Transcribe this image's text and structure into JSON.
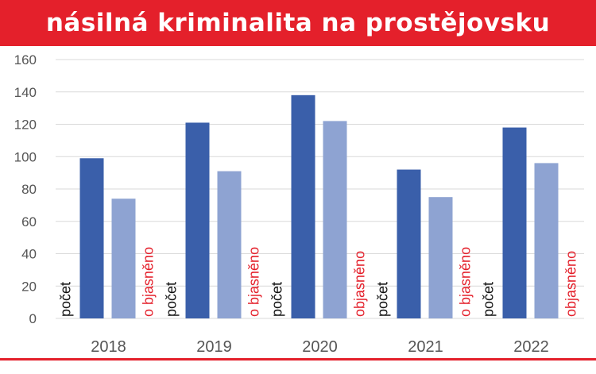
{
  "banner": {
    "title": "násilná kriminalita na prostějovsku"
  },
  "colors": {
    "banner": "#e4202b",
    "count_bar": "#3a5faa",
    "solved_bar": "#8ea3d2",
    "label_count": "#111111",
    "label_solved": "#e4202b",
    "axis_text": "#555555",
    "grid": "#d9d9d9"
  },
  "chart_data": {
    "type": "bar",
    "categories": [
      "2018",
      "2019",
      "2020",
      "2021",
      "2022"
    ],
    "series": [
      {
        "name": "počet",
        "values": [
          99,
          121,
          138,
          92,
          118
        ]
      },
      {
        "name": "objasněno",
        "values": [
          74,
          91,
          122,
          75,
          96
        ]
      }
    ],
    "ylim": [
      0,
      160
    ],
    "yticks": [
      "0",
      "20",
      "40",
      "60",
      "80",
      "100",
      "120",
      "140",
      "160"
    ],
    "grid": true,
    "legend": "none",
    "in_chart_labels": [
      [
        "počet",
        "o bjasněno"
      ],
      [
        "počet",
        "o bjasněno"
      ],
      [
        "počet",
        "objasněno"
      ],
      [
        "počet",
        "o bjasněno"
      ],
      [
        "počet",
        "objasněno"
      ]
    ]
  }
}
